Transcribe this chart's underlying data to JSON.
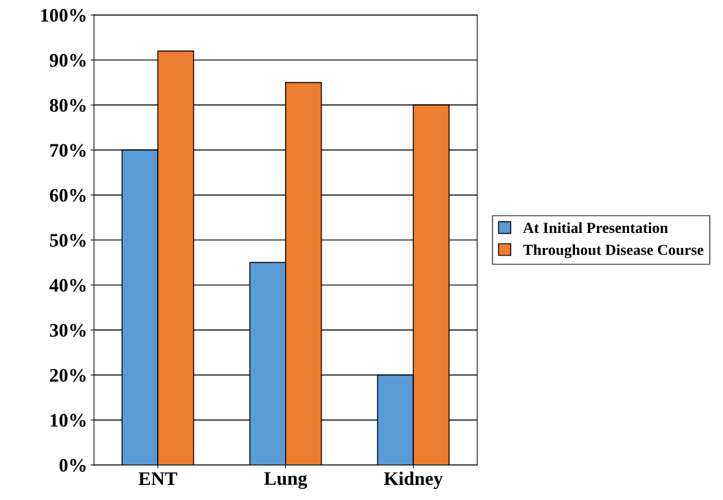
{
  "chart_data": {
    "type": "bar",
    "categories": [
      "ENT",
      "Lung",
      "Kidney"
    ],
    "series": [
      {
        "name": "At Initial Presentation",
        "color": "#5b9bd5",
        "values": [
          70,
          45,
          20
        ]
      },
      {
        "name": "Throughout Disease Course",
        "color": "#ed7d31",
        "values": [
          92,
          85,
          80
        ]
      }
    ],
    "ylim": [
      0,
      100
    ],
    "yticks": [
      {
        "value": 0,
        "label": "0%"
      },
      {
        "value": 10,
        "label": "10%"
      },
      {
        "value": 20,
        "label": "20%"
      },
      {
        "value": 30,
        "label": "30%"
      },
      {
        "value": 40,
        "label": "40%"
      },
      {
        "value": 50,
        "label": "50%"
      },
      {
        "value": 60,
        "label": "60%"
      },
      {
        "value": 70,
        "label": "70%"
      },
      {
        "value": 80,
        "label": "80%"
      },
      {
        "value": 90,
        "label": "90%"
      },
      {
        "value": 100,
        "label": "100%"
      }
    ],
    "grid": "y",
    "legend": "right"
  }
}
